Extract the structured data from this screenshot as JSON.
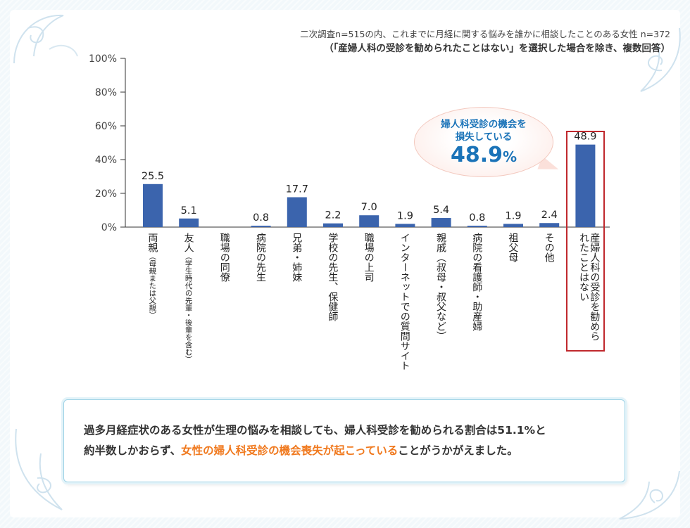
{
  "notes": {
    "line1": "二次調査n=515の内、これまでに月経に関する悩みを誰かに相談したことのある女性 n=372",
    "line2": "（「産婦人科の受診を勧められたことはない」を選択した場合を除き、複数回答）"
  },
  "chart_data": {
    "type": "bar",
    "title": "",
    "xlabel": "",
    "ylabel": "",
    "ylim": [
      0,
      100
    ],
    "yticks": [
      "0%",
      "20%",
      "40%",
      "60%",
      "80%",
      "100%"
    ],
    "grid": false,
    "bar_color": "#3b64ad",
    "categories": [
      {
        "label": "両親",
        "sub": "（母親または父親）"
      },
      {
        "label": "友人",
        "sub": "（学生時代の先輩・後輩を含む）"
      },
      {
        "label": "職場の同僚",
        "sub": ""
      },
      {
        "label": "病院の先生",
        "sub": ""
      },
      {
        "label": "兄弟・姉妹",
        "sub": ""
      },
      {
        "label": "学校の先生、保健師",
        "sub": ""
      },
      {
        "label": "職場の上司",
        "sub": ""
      },
      {
        "label": "インターネットでの質問サイト",
        "sub": ""
      },
      {
        "label": "親戚（叔母・叔父など）",
        "sub": ""
      },
      {
        "label": "病院の看護師・助産婦",
        "sub": ""
      },
      {
        "label": "祖父母",
        "sub": ""
      },
      {
        "label": "その他",
        "sub": ""
      },
      {
        "label": "産婦人科の受診を勧められたことはない",
        "sub": ""
      }
    ],
    "values": [
      25.5,
      5.1,
      null,
      0.8,
      17.7,
      2.2,
      7.0,
      1.9,
      5.4,
      0.8,
      1.9,
      2.4,
      48.9
    ],
    "value_labels": [
      "25.5",
      "5.1",
      "",
      "0.8",
      "17.7",
      "2.2",
      "7.0",
      "1.9",
      "5.4",
      "0.8",
      "1.9",
      "2.4",
      "48.9"
    ],
    "highlight_index": 12,
    "highlight_color": "#c0282d"
  },
  "callout": {
    "line1": "婦人科受診の機会を",
    "line2": "損失している",
    "value": "48.9",
    "unit": "%"
  },
  "summary": {
    "line1": "過多月経症状のある女性が生理の悩みを相談しても、婦人科受診を勧められる割合は51.1%と",
    "line2_pre": "約半数しかおらず、",
    "line2_highlight": "女性の婦人科受診の機会喪失が起こっている",
    "line2_post": "ことがうかがえました。"
  },
  "colors": {
    "accent_blue": "#1a73b8",
    "highlight_orange": "#f0791e"
  }
}
